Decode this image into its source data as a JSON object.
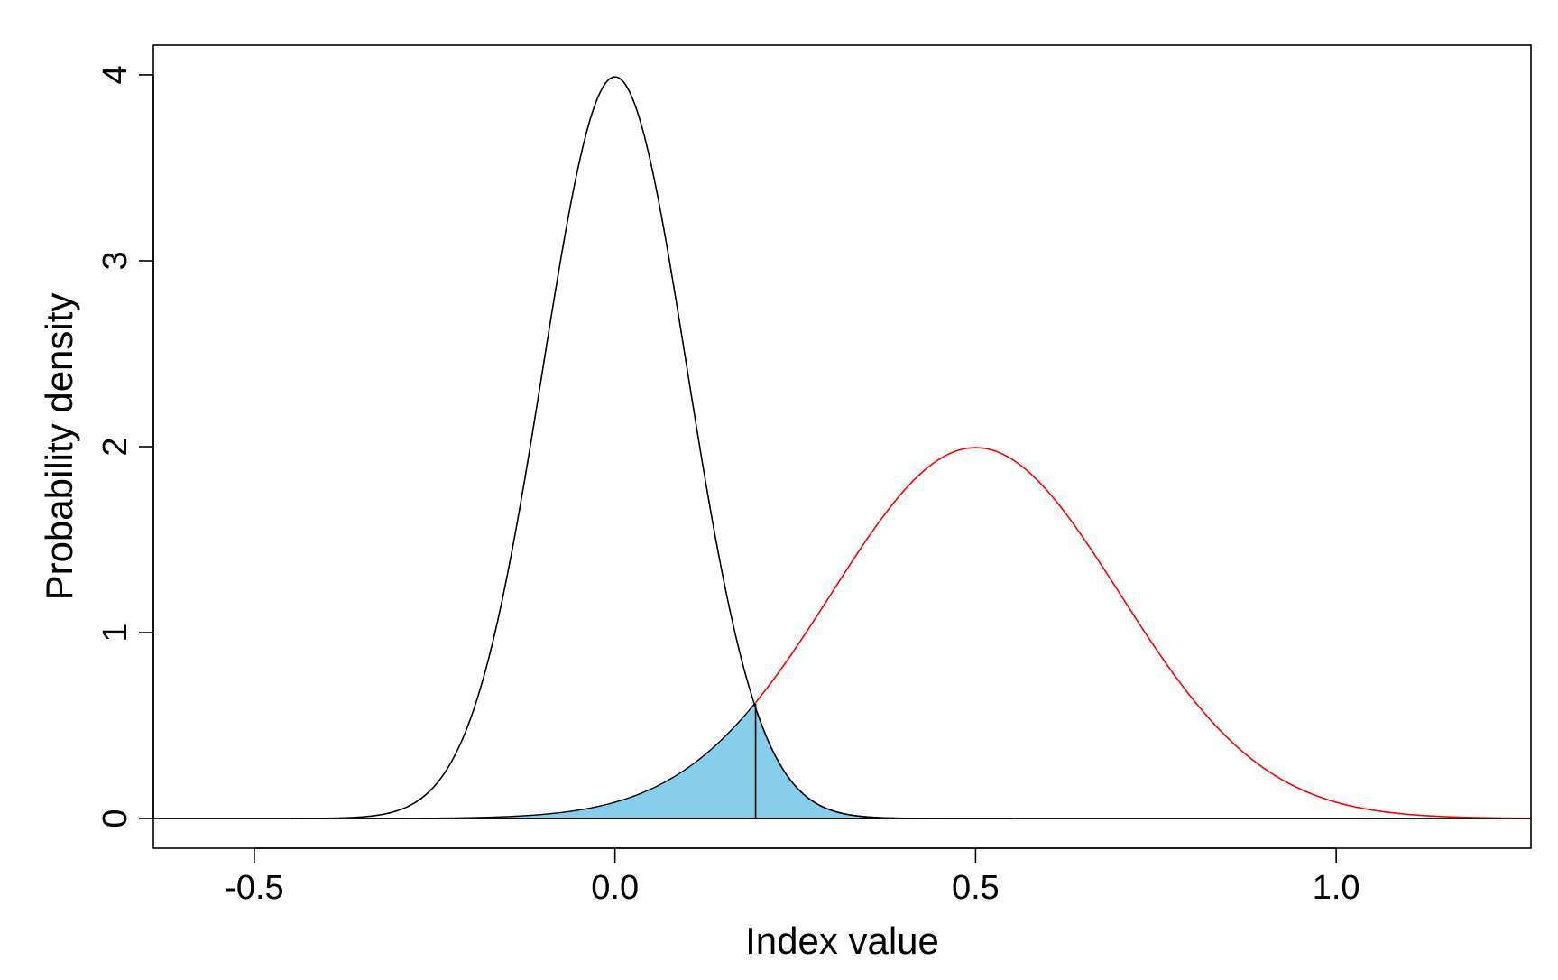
{
  "chart_data": {
    "type": "line",
    "title": "",
    "xlabel": "Index value",
    "ylabel": "Probability density",
    "xlim": [
      -0.64,
      1.27
    ],
    "ylim": [
      -0.16,
      4.16
    ],
    "x_ticks": [
      -0.5,
      0.0,
      0.5,
      1.0
    ],
    "x_tick_labels": [
      "-0.5",
      "0.0",
      "0.5",
      "1.0"
    ],
    "y_ticks": [
      0,
      1,
      2,
      3,
      4
    ],
    "y_tick_labels": [
      "0",
      "1",
      "2",
      "3",
      "4"
    ],
    "grid": false,
    "legend": "none",
    "series": [
      {
        "distribution": "normal",
        "mean": 0.0,
        "sd": 0.1,
        "peak_density": 3.99,
        "color": "#000000",
        "x_range": [
          -0.45,
          0.55
        ]
      },
      {
        "distribution": "normal",
        "mean": 0.5,
        "sd": 0.2,
        "peak_density": 2.0,
        "color": "#ff0000",
        "x_range": [
          0.195,
          1.27
        ]
      }
    ],
    "shaded_region": {
      "color": "#87ceeb",
      "outline": "#000000",
      "x_range": [
        -0.45,
        0.55
      ],
      "description": "overlap area under the lower of the two curves",
      "divider_x": 0.195,
      "divider_y": 0.62
    },
    "baseline": {
      "y": 0,
      "color": "#000000"
    }
  }
}
